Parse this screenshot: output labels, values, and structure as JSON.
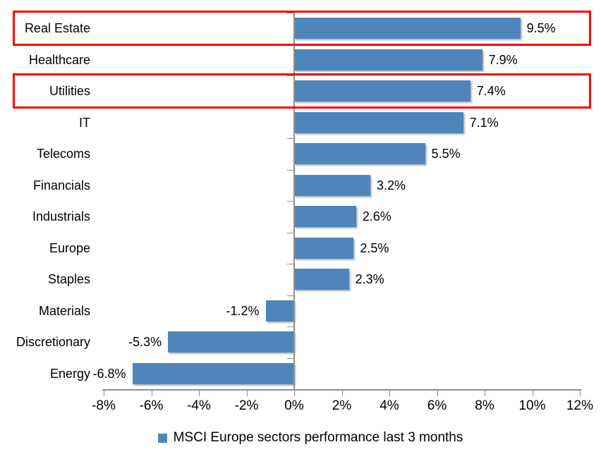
{
  "chart_data": {
    "type": "bar",
    "orientation": "horizontal",
    "title": "",
    "categories": [
      "Real Estate",
      "Healthcare",
      "Utilities",
      "IT",
      "Telecoms",
      "Financials",
      "Industrials",
      "Europe",
      "Staples",
      "Materials",
      "Discretionary",
      "Energy"
    ],
    "values": [
      9.5,
      7.9,
      7.4,
      7.1,
      5.5,
      3.2,
      2.6,
      2.5,
      2.3,
      -1.2,
      -5.3,
      -6.8
    ],
    "data_labels": [
      "9.5%",
      "7.9%",
      "7.4%",
      "7.1%",
      "5.5%",
      "3.2%",
      "2.6%",
      "2.5%",
      "2.3%",
      "-1.2%",
      "-5.3%",
      "-6.8%"
    ],
    "x_axis": {
      "min": -8,
      "max": 12,
      "step": 2,
      "tick_labels": [
        "-8%",
        "-6%",
        "-4%",
        "-2%",
        "0%",
        "2%",
        "4%",
        "6%",
        "8%",
        "10%",
        "12%"
      ]
    },
    "grid": "off",
    "bar_color": "#4E86BC",
    "axis_color": "#8F8F8F",
    "highlight_color": "#FF0000",
    "highlighted_categories": [
      "Real Estate",
      "Utilities"
    ],
    "legend": {
      "position": "bottom",
      "label": "MSCI Europe sectors performance last 3 months",
      "marker_color": "#4E86BC"
    }
  }
}
